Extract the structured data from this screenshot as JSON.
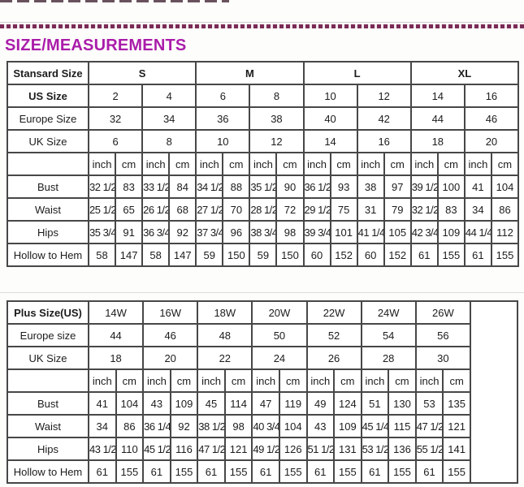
{
  "page": {
    "title": "SIZE/MEASUREMENTS"
  },
  "colors": {
    "title": "#aa1caa",
    "dash": "#7a2b55",
    "border": "#474747",
    "text": "#1c1c1c"
  },
  "tables": [
    {
      "name": "standard-size-table",
      "header_rows": [
        {
          "label": "Stansard Size",
          "bold": true,
          "values_bold": true,
          "colspan": 4,
          "values": [
            "S",
            "M",
            "L",
            "XL"
          ]
        },
        {
          "label": "US Size",
          "bold": true,
          "values_bold": false,
          "colspan": 2,
          "values": [
            "2",
            "4",
            "6",
            "8",
            "10",
            "12",
            "14",
            "16"
          ]
        },
        {
          "label": "Europe Size",
          "bold": false,
          "values_bold": false,
          "colspan": 2,
          "values": [
            "32",
            "34",
            "36",
            "38",
            "40",
            "42",
            "44",
            "46"
          ]
        },
        {
          "label": "UK Size",
          "bold": false,
          "values_bold": false,
          "colspan": 2,
          "values": [
            "6",
            "8",
            "10",
            "12",
            "14",
            "16",
            "18",
            "20"
          ]
        }
      ],
      "units": [
        "inch",
        "cm"
      ],
      "measure_rows": [
        {
          "label": "Bust",
          "values": [
            "32 1/2",
            "83",
            "33 1/2",
            "84",
            "34 1/2",
            "88",
            "35 1/2",
            "90",
            "36 1/2",
            "93",
            "38",
            "97",
            "39 1/2",
            "100",
            "41",
            "104"
          ]
        },
        {
          "label": "Waist",
          "values": [
            "25 1/2",
            "65",
            "26 1/2",
            "68",
            "27 1/2",
            "70",
            "28 1/2",
            "72",
            "29 1/2",
            "75",
            "31",
            "79",
            "32 1/2",
            "83",
            "34",
            "86"
          ]
        },
        {
          "label": "Hips",
          "values": [
            "35 3/4",
            "91",
            "36 3/4",
            "92",
            "37 3/4",
            "96",
            "38 3/4",
            "98",
            "39 3/4",
            "101",
            "41 1/4",
            "105",
            "42 3/4",
            "109",
            "44 1/4",
            "112"
          ]
        },
        {
          "label": "Hollow to Hem",
          "values": [
            "58",
            "147",
            "58",
            "147",
            "59",
            "150",
            "59",
            "150",
            "60",
            "152",
            "60",
            "152",
            "61",
            "155",
            "61",
            "155"
          ]
        }
      ],
      "trailing_empty_col": false
    },
    {
      "name": "plus-size-table",
      "header_rows": [
        {
          "label": "Plus Size(US)",
          "bold": true,
          "values_bold": false,
          "colspan": 2,
          "values": [
            "14W",
            "16W",
            "18W",
            "20W",
            "22W",
            "24W",
            "26W"
          ]
        },
        {
          "label": "Europe size",
          "bold": false,
          "values_bold": false,
          "colspan": 2,
          "values": [
            "44",
            "46",
            "48",
            "50",
            "52",
            "54",
            "56"
          ]
        },
        {
          "label": "UK Size",
          "bold": false,
          "values_bold": false,
          "colspan": 2,
          "values": [
            "18",
            "20",
            "22",
            "24",
            "26",
            "28",
            "30"
          ]
        }
      ],
      "units": [
        "inch",
        "cm"
      ],
      "measure_rows": [
        {
          "label": "Bust",
          "values": [
            "41",
            "104",
            "43",
            "109",
            "45",
            "114",
            "47",
            "119",
            "49",
            "124",
            "51",
            "130",
            "53",
            "135"
          ]
        },
        {
          "label": "Waist",
          "values": [
            "34",
            "86",
            "36 1/4",
            "92",
            "38 1/2",
            "98",
            "40 3/4",
            "104",
            "43",
            "109",
            "45 1/4",
            "115",
            "47 1/2",
            "121"
          ]
        },
        {
          "label": "Hips",
          "values": [
            "43 1/2",
            "110",
            "45 1/2",
            "116",
            "47 1/2",
            "121",
            "49 1/2",
            "126",
            "51 1/2",
            "131",
            "53 1/2",
            "136",
            "55 1/2",
            "141"
          ]
        },
        {
          "label": "Hollow to Hem",
          "values": [
            "61",
            "155",
            "61",
            "155",
            "61",
            "155",
            "61",
            "155",
            "61",
            "155",
            "61",
            "155",
            "61",
            "155"
          ]
        }
      ],
      "trailing_empty_col": true
    }
  ]
}
